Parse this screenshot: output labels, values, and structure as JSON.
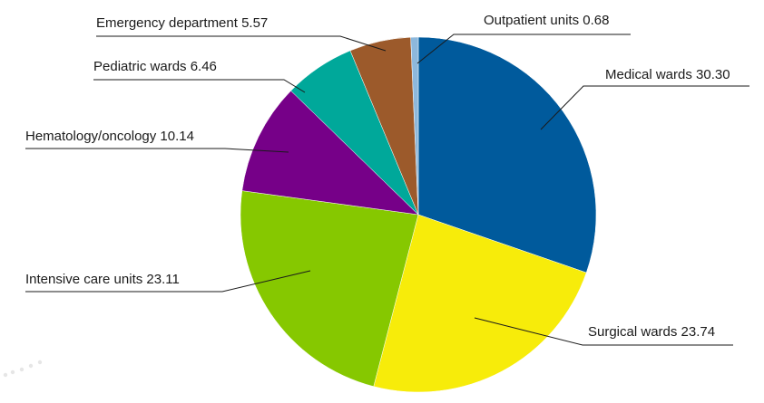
{
  "chart_data": {
    "type": "pie",
    "start_angle_deg": 0,
    "direction": "clockwise",
    "slices": [
      {
        "name": "Medical wards",
        "value": 30.3,
        "label": "Medical wards 30.30",
        "color": "#005a9c"
      },
      {
        "name": "Surgical wards",
        "value": 23.74,
        "label": "Surgical wards 23.74",
        "color": "#f7ec0a"
      },
      {
        "name": "Intensive care units",
        "value": 23.11,
        "label": "Intensive care units 23.11",
        "color": "#86c800"
      },
      {
        "name": "Hematology/oncology",
        "value": 10.14,
        "label": "Hematology/oncology 10.14",
        "color": "#760088"
      },
      {
        "name": "Pediatric wards",
        "value": 6.46,
        "label": "Pediatric wards 6.46",
        "color": "#00a89a"
      },
      {
        "name": "Emergency department",
        "value": 5.57,
        "label": "Emergency department 5.57",
        "color": "#9c5a2b"
      },
      {
        "name": "Outpatient units",
        "value": 0.68,
        "label": "Outpatient units 0.68",
        "color": "#8db8dc"
      }
    ]
  }
}
